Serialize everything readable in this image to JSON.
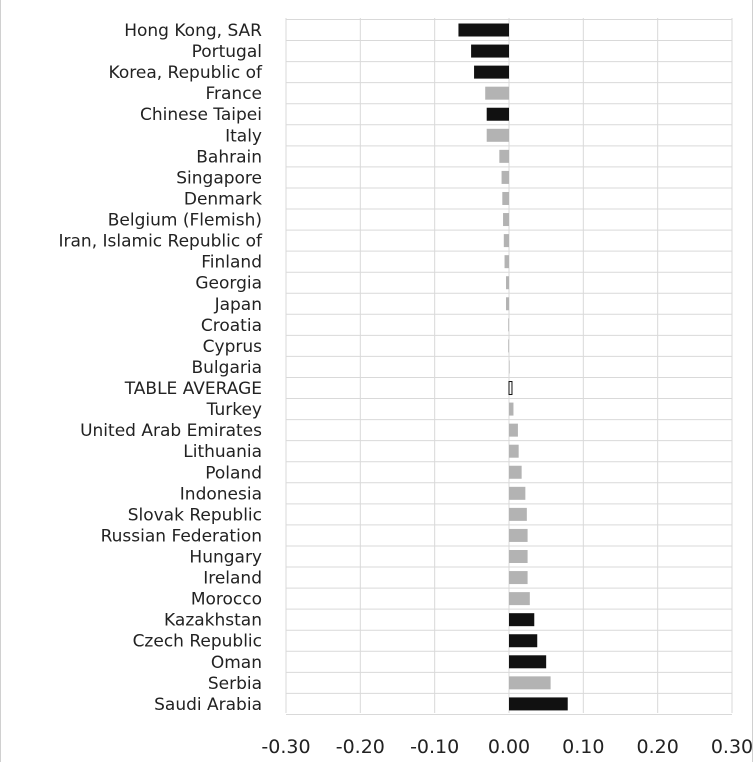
{
  "chart_data": {
    "type": "bar",
    "orientation": "horizontal",
    "title": "",
    "xlabel": "",
    "ylabel": "",
    "xlim": [
      -0.3,
      0.3
    ],
    "x_ticks": [
      -0.3,
      -0.2,
      -0.1,
      0.0,
      0.1,
      0.2,
      0.3
    ],
    "x_tick_labels": [
      "-0.30",
      "-0.20",
      "-0.10",
      "0.00",
      "0.10",
      "0.20",
      "0.30"
    ],
    "grid": true,
    "legend": "none",
    "colors": {
      "dark": "#111111",
      "light": "#b3b3b3",
      "grid": "#d9d9d9"
    },
    "categories": [
      "Hong Kong, SAR",
      "Portugal",
      "Korea, Republic of",
      "France",
      "Chinese Taipei",
      "Italy",
      "Bahrain",
      "Singapore",
      "Denmark",
      "Belgium (Flemish)",
      "Iran, Islamic Republic of",
      "Finland",
      "Georgia",
      "Japan",
      "Croatia",
      "Cyprus",
      "Bulgaria",
      "TABLE AVERAGE",
      "Turkey",
      "United Arab Emirates",
      "Lithuania",
      "Poland",
      "Indonesia",
      "Slovak Republic",
      "Russian Federation",
      "Hungary",
      "Ireland",
      "Morocco",
      "Kazakhstan",
      "Czech Republic",
      "Oman",
      "Serbia",
      "Saudi Arabia"
    ],
    "values": [
      -0.068,
      -0.051,
      -0.047,
      -0.032,
      -0.03,
      -0.03,
      -0.013,
      -0.01,
      -0.009,
      -0.008,
      -0.007,
      -0.006,
      -0.004,
      -0.004,
      -0.001,
      -0.001,
      0.0,
      0.004,
      0.006,
      0.012,
      0.013,
      0.017,
      0.022,
      0.024,
      0.025,
      0.025,
      0.025,
      0.028,
      0.034,
      0.038,
      0.05,
      0.056,
      0.079
    ],
    "bar_shades": [
      "dark",
      "dark",
      "dark",
      "light",
      "dark",
      "light",
      "light",
      "light",
      "light",
      "light",
      "light",
      "light",
      "light",
      "light",
      "light",
      "light",
      "light",
      "dark",
      "light",
      "light",
      "light",
      "light",
      "light",
      "light",
      "light",
      "light",
      "light",
      "light",
      "dark",
      "dark",
      "dark",
      "light",
      "dark"
    ]
  }
}
